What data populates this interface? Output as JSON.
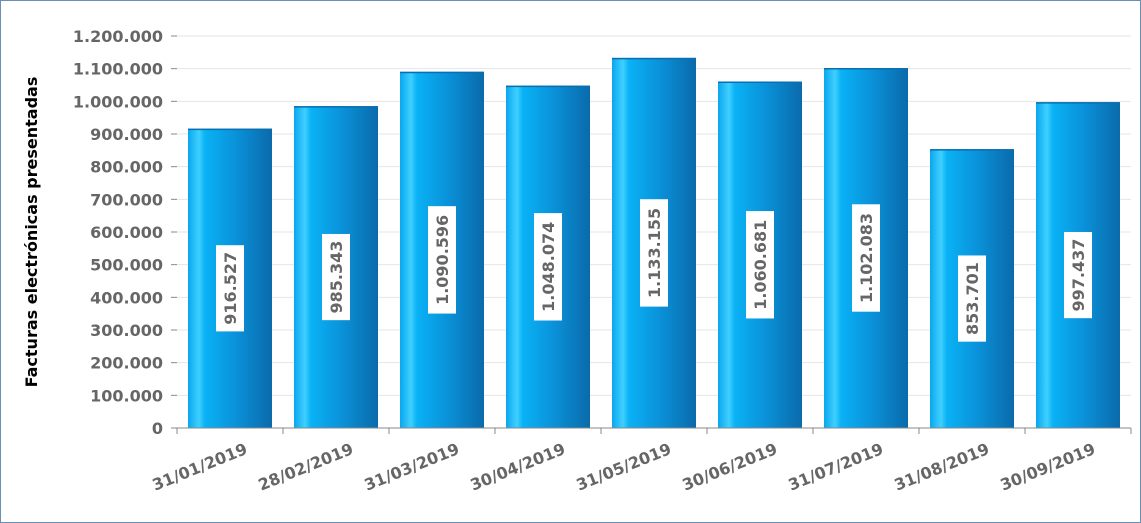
{
  "chart_data": {
    "type": "bar",
    "title": "",
    "xlabel": "",
    "ylabel": "Facturas electrónicas presentadas",
    "categories": [
      "31/01/2019",
      "28/02/2019",
      "31/03/2019",
      "30/04/2019",
      "31/05/2019",
      "30/06/2019",
      "31/07/2019",
      "31/08/2019",
      "30/09/2019"
    ],
    "values": [
      916527,
      985343,
      1090596,
      1048074,
      1133155,
      1060681,
      1102083,
      853701,
      997437
    ],
    "data_labels": [
      "916.527",
      "985.343",
      "1.090.596",
      "1.048.074",
      "1.133.155",
      "1.060.681",
      "1.102.083",
      "853.701",
      "997.437"
    ],
    "ylim": [
      0,
      1200000
    ],
    "yticks": [
      0,
      100000,
      200000,
      300000,
      400000,
      500000,
      600000,
      700000,
      800000,
      900000,
      1000000,
      1100000,
      1200000
    ],
    "ytick_labels": [
      "0",
      "100.000",
      "200.000",
      "300.000",
      "400.000",
      "500.000",
      "600.000",
      "700.000",
      "800.000",
      "900.000",
      "1.000.000",
      "1.100.000",
      "1.200.000"
    ],
    "grid": true,
    "legend": "none",
    "colors": {
      "bar": "#0a9be0",
      "bar_highlight": "#4fd8ff",
      "bar_dark": "#0a6fb0",
      "grid": "#e6e6e6",
      "axis": "#888888"
    }
  }
}
